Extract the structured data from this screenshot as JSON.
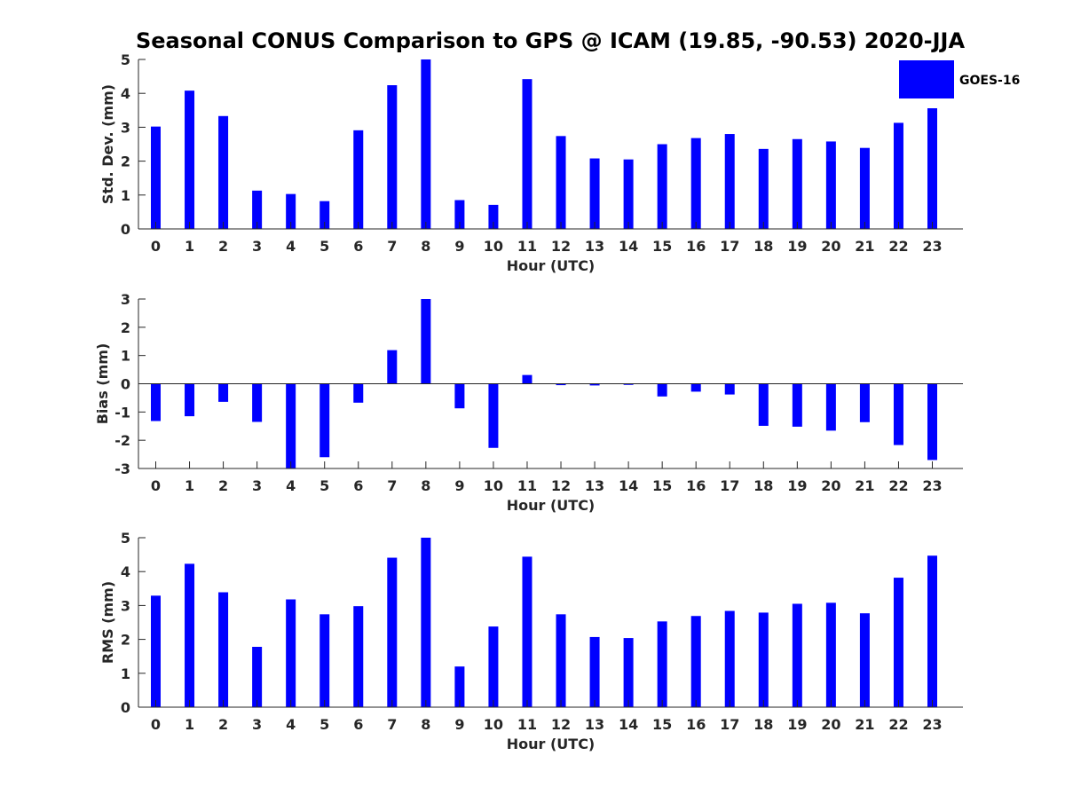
{
  "figure": {
    "title": "Seasonal CONUS Comparison to GPS @ ICAM (19.85, -90.53) 2020-JJA",
    "legend": {
      "label": "GOES-16",
      "color": "#0000ff",
      "position": "top-right"
    },
    "bar_color": "#0000ff"
  },
  "chart_data": [
    {
      "type": "bar",
      "categories": [
        "0",
        "1",
        "2",
        "3",
        "4",
        "5",
        "6",
        "7",
        "8",
        "9",
        "10",
        "11",
        "12",
        "13",
        "14",
        "15",
        "16",
        "17",
        "18",
        "19",
        "20",
        "21",
        "22",
        "23"
      ],
      "series": [
        {
          "name": "GOES-16",
          "values": [
            3.02,
            4.08,
            3.33,
            1.13,
            1.03,
            0.82,
            2.91,
            4.24,
            5.0,
            0.85,
            0.71,
            4.42,
            2.74,
            2.08,
            2.05,
            2.5,
            2.68,
            2.8,
            2.36,
            2.65,
            2.58,
            2.39,
            3.13,
            3.56
          ]
        }
      ],
      "xlabel": "Hour (UTC)",
      "ylabel": "Std. Dev. (mm)",
      "ylim": [
        0,
        5
      ],
      "yticks": [
        0,
        1,
        2,
        3,
        4,
        5
      ],
      "grid": false
    },
    {
      "type": "bar",
      "categories": [
        "0",
        "1",
        "2",
        "3",
        "4",
        "5",
        "6",
        "7",
        "8",
        "9",
        "10",
        "11",
        "12",
        "13",
        "14",
        "15",
        "16",
        "17",
        "18",
        "19",
        "20",
        "21",
        "22",
        "23"
      ],
      "series": [
        {
          "name": "GOES-16",
          "values": [
            -1.32,
            -1.15,
            -0.64,
            -1.35,
            -3.0,
            -2.6,
            -0.67,
            1.19,
            3.0,
            -0.87,
            -2.27,
            0.31,
            -0.05,
            -0.06,
            -0.04,
            -0.45,
            -0.28,
            -0.38,
            -1.49,
            -1.52,
            -1.66,
            -1.36,
            -2.17,
            -2.7
          ]
        }
      ],
      "xlabel": "Hour (UTC)",
      "ylabel": "Bias (mm)",
      "ylim": [
        -3,
        3
      ],
      "yticks": [
        -3,
        -2,
        -1,
        0,
        1,
        2,
        3
      ],
      "zero_line": true,
      "grid": false
    },
    {
      "type": "bar",
      "categories": [
        "0",
        "1",
        "2",
        "3",
        "4",
        "5",
        "6",
        "7",
        "8",
        "9",
        "10",
        "11",
        "12",
        "13",
        "14",
        "15",
        "16",
        "17",
        "18",
        "19",
        "20",
        "21",
        "22",
        "23"
      ],
      "series": [
        {
          "name": "GOES-16",
          "values": [
            3.29,
            4.23,
            3.39,
            1.78,
            3.18,
            2.74,
            2.98,
            4.41,
            5.0,
            1.2,
            2.38,
            4.44,
            2.74,
            2.07,
            2.04,
            2.53,
            2.69,
            2.84,
            2.79,
            3.05,
            3.08,
            2.77,
            3.82,
            4.47
          ]
        }
      ],
      "xlabel": "Hour (UTC)",
      "ylabel": "RMS (mm)",
      "ylim": [
        0,
        5
      ],
      "yticks": [
        0,
        1,
        2,
        3,
        4,
        5
      ],
      "grid": false
    }
  ]
}
